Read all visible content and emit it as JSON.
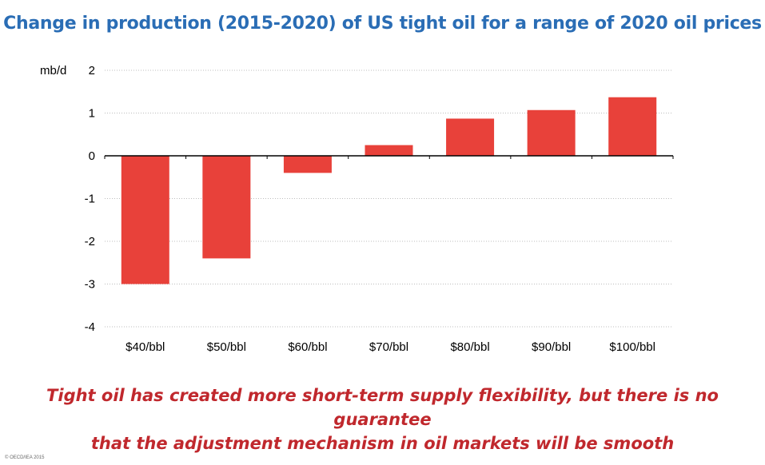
{
  "title": "Change in production (2015-2020) of US tight oil for a range of 2020 oil prices",
  "caption_line1": "Tight oil has created more short-term supply flexibility, but there is no guarantee",
  "caption_line2": "that the adjustment mechanism in oil markets will be smooth",
  "copyright": "© OECD/IEA 2015",
  "colors": {
    "title": "#2a6db5",
    "bar": "#e8413a",
    "caption": "#c0282d"
  },
  "chart_data": {
    "type": "bar",
    "title": "Change in production (2015-2020) of US tight oil for a range of 2020 oil prices",
    "ylabel": "mb/d",
    "xlabel": "",
    "categories": [
      "$40/bbl",
      "$50/bbl",
      "$60/bbl",
      "$70/bbl",
      "$80/bbl",
      "$90/bbl",
      "$100/bbl"
    ],
    "values": [
      -3.0,
      -2.4,
      -0.4,
      0.25,
      0.87,
      1.07,
      1.37
    ],
    "ylim": [
      -4,
      2
    ],
    "yticks": [
      2,
      1,
      0,
      -1,
      -2,
      -3,
      -4
    ],
    "grid": true
  }
}
